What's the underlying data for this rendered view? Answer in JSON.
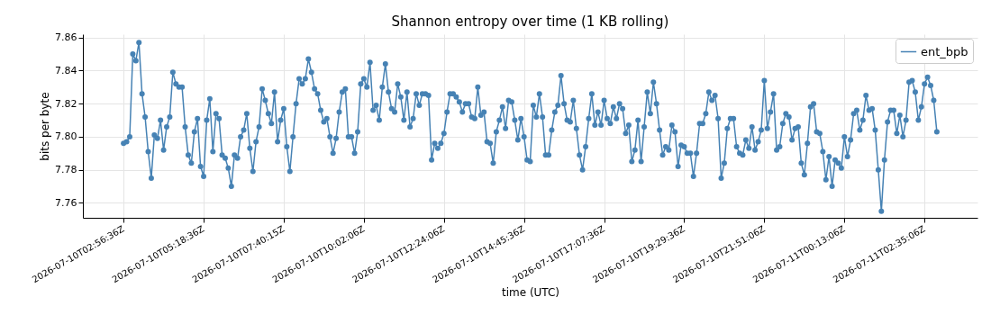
{
  "chart_data": {
    "type": "line",
    "title": "Shannon entropy over time (1 KB rolling)",
    "xlabel": "time (UTC)",
    "ylabel": "bits per byte",
    "categories": [
      "2026-07-10T02:56:36Z",
      null,
      null,
      null,
      null,
      null,
      null,
      null,
      null,
      null,
      null,
      null,
      null,
      null,
      null,
      null,
      null,
      null,
      null,
      null,
      null,
      null,
      null,
      null,
      null,
      null,
      "2026-07-10T05:18:36Z",
      null,
      null,
      null,
      null,
      null,
      null,
      null,
      null,
      null,
      null,
      null,
      null,
      null,
      null,
      null,
      null,
      null,
      null,
      null,
      null,
      null,
      null,
      null,
      null,
      null,
      "2026-07-10T07:40:15Z",
      null,
      null,
      null,
      null,
      null,
      null,
      null,
      null,
      null,
      null,
      null,
      null,
      null,
      null,
      null,
      null,
      null,
      null,
      null,
      null,
      null,
      null,
      null,
      null,
      null,
      "2026-07-10T10:02:06Z",
      null,
      null,
      null,
      null,
      null,
      null,
      null,
      null,
      null,
      null,
      null,
      null,
      null,
      null,
      null,
      null,
      null,
      null,
      null,
      null,
      null,
      null,
      null,
      null,
      null,
      "2026-07-10T12:24:06Z",
      null,
      null,
      null,
      null,
      null,
      null,
      null,
      null,
      null,
      null,
      null,
      null,
      null,
      null,
      null,
      null,
      null,
      null,
      null,
      null,
      null,
      null,
      null,
      null,
      null,
      "2026-07-10T14:45:36Z",
      null,
      null,
      null,
      null,
      null,
      null,
      null,
      null,
      null,
      null,
      null,
      null,
      null,
      null,
      null,
      null,
      null,
      null,
      null,
      null,
      null,
      null,
      null,
      null,
      null,
      "2026-07-10T17:07:36Z",
      null,
      null,
      null,
      null,
      null,
      null,
      null,
      null,
      null,
      null,
      null,
      null,
      null,
      null,
      null,
      null,
      null,
      null,
      null,
      null,
      null,
      null,
      null,
      null,
      null,
      "2026-07-10T19:29:36Z",
      null,
      null,
      null,
      null,
      null,
      null,
      null,
      null,
      null,
      null,
      null,
      null,
      null,
      null,
      null,
      null,
      null,
      null,
      null,
      null,
      null,
      null,
      null,
      null,
      null,
      "2026-07-10T21:51:06Z",
      null,
      null,
      null,
      null,
      null,
      null,
      null,
      null,
      null,
      null,
      null,
      null,
      null,
      null,
      null,
      null,
      null,
      null,
      null,
      null,
      null,
      null,
      null,
      null,
      null,
      "2026-07-11T00:13:06Z",
      null,
      null,
      null,
      null,
      null,
      null,
      null,
      null,
      null,
      null,
      null,
      null,
      null,
      null,
      null,
      null,
      null,
      null,
      null,
      null,
      null,
      null,
      null,
      null,
      null,
      "2026-07-11T02:35:06Z",
      null,
      null,
      null,
      null
    ],
    "series": [
      {
        "name": "ent_bpb",
        "color": "#4682b4",
        "values": [
          7.796,
          7.797,
          7.8,
          7.85,
          7.846,
          7.857,
          7.826,
          7.812,
          7.791,
          7.775,
          7.801,
          7.799,
          7.81,
          7.792,
          7.806,
          7.812,
          7.839,
          7.832,
          7.83,
          7.83,
          7.806,
          7.789,
          7.784,
          7.803,
          7.811,
          7.782,
          7.776,
          7.81,
          7.823,
          7.791,
          7.814,
          7.811,
          7.789,
          7.787,
          7.781,
          7.77,
          7.789,
          7.787,
          7.8,
          7.804,
          7.814,
          7.793,
          7.779,
          7.797,
          7.806,
          7.829,
          7.822,
          7.814,
          7.808,
          7.827,
          7.797,
          7.81,
          7.817,
          7.794,
          7.779,
          7.8,
          7.82,
          7.835,
          7.832,
          7.835,
          7.847,
          7.839,
          7.829,
          7.826,
          7.816,
          7.809,
          7.811,
          7.8,
          7.79,
          7.799,
          7.815,
          7.827,
          7.829,
          7.8,
          7.8,
          7.79,
          7.803,
          7.832,
          7.835,
          7.83,
          7.845,
          7.816,
          7.819,
          7.81,
          7.83,
          7.844,
          7.827,
          7.817,
          7.815,
          7.832,
          7.824,
          7.81,
          7.827,
          7.806,
          7.811,
          7.826,
          7.819,
          7.826,
          7.826,
          7.825,
          7.786,
          7.796,
          7.793,
          7.796,
          7.802,
          7.815,
          7.826,
          7.826,
          7.824,
          7.821,
          7.815,
          7.82,
          7.82,
          7.812,
          7.811,
          7.83,
          7.813,
          7.815,
          7.797,
          7.796,
          7.784,
          7.803,
          7.81,
          7.818,
          7.805,
          7.822,
          7.821,
          7.81,
          7.798,
          7.811,
          7.8,
          7.786,
          7.785,
          7.819,
          7.812,
          7.826,
          7.812,
          7.789,
          7.789,
          7.804,
          7.815,
          7.819,
          7.837,
          7.82,
          7.81,
          7.809,
          7.822,
          7.805,
          7.789,
          7.78,
          7.794,
          7.811,
          7.826,
          7.807,
          7.815,
          7.807,
          7.822,
          7.811,
          7.808,
          7.818,
          7.811,
          7.82,
          7.817,
          7.802,
          7.807,
          7.785,
          7.792,
          7.81,
          7.785,
          7.806,
          7.827,
          7.814,
          7.833,
          7.82,
          7.804,
          7.789,
          7.794,
          7.792,
          7.807,
          7.803,
          7.782,
          7.795,
          7.794,
          7.79,
          7.79,
          7.776,
          7.79,
          7.808,
          7.808,
          7.814,
          7.827,
          7.822,
          7.825,
          7.811,
          7.775,
          7.784,
          7.805,
          7.811,
          7.811,
          7.794,
          7.79,
          7.789,
          7.798,
          7.793,
          7.806,
          7.792,
          7.797,
          7.804,
          7.834,
          7.805,
          7.815,
          7.826,
          7.792,
          7.794,
          7.808,
          7.814,
          7.812,
          7.798,
          7.805,
          7.806,
          7.784,
          7.777,
          7.796,
          7.818,
          7.82,
          7.803,
          7.802,
          7.791,
          7.774,
          7.788,
          7.77,
          7.786,
          7.784,
          7.781,
          7.8,
          7.788,
          7.798,
          7.814,
          7.816,
          7.804,
          7.81,
          7.825,
          7.816,
          7.817,
          7.804,
          7.78,
          7.755,
          7.786,
          7.809,
          7.816,
          7.816,
          7.802,
          7.813,
          7.8,
          7.81,
          7.833,
          7.834,
          7.827,
          7.81,
          7.818,
          7.832,
          7.836,
          7.831,
          7.822,
          7.803
        ]
      }
    ],
    "ylim": [
      7.751,
      7.862
    ],
    "yticks": [
      7.76,
      7.78,
      {
        "value": 7.8,
        "label": "7.80"
      },
      7.82,
      7.84,
      7.86
    ],
    "grid": true,
    "legend": "top right",
    "marker": "circle",
    "line_style": "solid"
  }
}
